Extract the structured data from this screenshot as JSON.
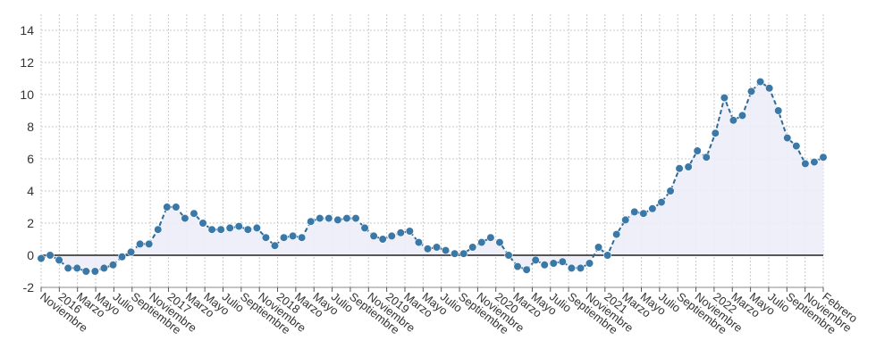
{
  "chart_data": {
    "type": "line",
    "title": "",
    "xlabel": "",
    "ylabel": "",
    "ylim": [
      -2,
      15
    ],
    "yticks": [
      -2,
      0,
      2,
      4,
      6,
      8,
      10,
      12,
      14
    ],
    "grid": true,
    "legend": "none",
    "colors": {
      "line": "#2f6b96",
      "marker": "#3a78a8",
      "fill": "#ecedf8",
      "zero_line": "#222222",
      "grid": "#c8c8c8"
    },
    "x_tick_labels": [
      "Noviembre",
      "2016",
      "Marzo",
      "Mayo",
      "Julio",
      "Septiembre",
      "Noviembre",
      "2017",
      "Marzo",
      "Mayo",
      "Julio",
      "Septiembre",
      "Noviembre",
      "2018",
      "Marzo",
      "Mayo",
      "Julio",
      "Septiembre",
      "Noviembre",
      "2019",
      "Marzo",
      "Mayo",
      "Julio",
      "Septiembre",
      "Noviembre",
      "2020",
      "Marzo",
      "Mayo",
      "Julio",
      "Septiembre",
      "Noviembre",
      "2021",
      "Marzo",
      "Mayo",
      "Julio",
      "Septiembre",
      "Noviembre",
      "2022",
      "Marzo",
      "Mayo",
      "Julio",
      "Septiembre",
      "Noviembre",
      "Febrero"
    ],
    "series": [
      {
        "values": [
          -0.2,
          0.0,
          -0.3,
          -0.8,
          -0.8,
          -1.0,
          -1.0,
          -0.8,
          -0.6,
          -0.1,
          0.2,
          0.7,
          0.7,
          1.6,
          3.0,
          3.0,
          2.3,
          2.6,
          2.0,
          1.6,
          1.6,
          1.7,
          1.8,
          1.6,
          1.7,
          1.1,
          0.6,
          1.1,
          1.2,
          1.1,
          2.1,
          2.3,
          2.3,
          2.2,
          2.3,
          2.3,
          1.7,
          1.2,
          1.0,
          1.2,
          1.4,
          1.5,
          0.8,
          0.4,
          0.5,
          0.3,
          0.1,
          0.1,
          0.5,
          0.8,
          1.1,
          0.8,
          0.0,
          -0.7,
          -0.9,
          -0.3,
          -0.6,
          -0.5,
          -0.4,
          -0.8,
          -0.8,
          -0.5,
          0.5,
          0.0,
          1.3,
          2.2,
          2.7,
          2.6,
          2.9,
          3.3,
          4.0,
          5.4,
          5.5,
          6.5,
          6.1,
          7.6,
          9.8,
          8.4,
          8.7,
          10.2,
          10.8,
          10.4,
          9.0,
          7.3,
          6.8,
          5.7,
          5.8,
          6.1
        ]
      }
    ]
  }
}
